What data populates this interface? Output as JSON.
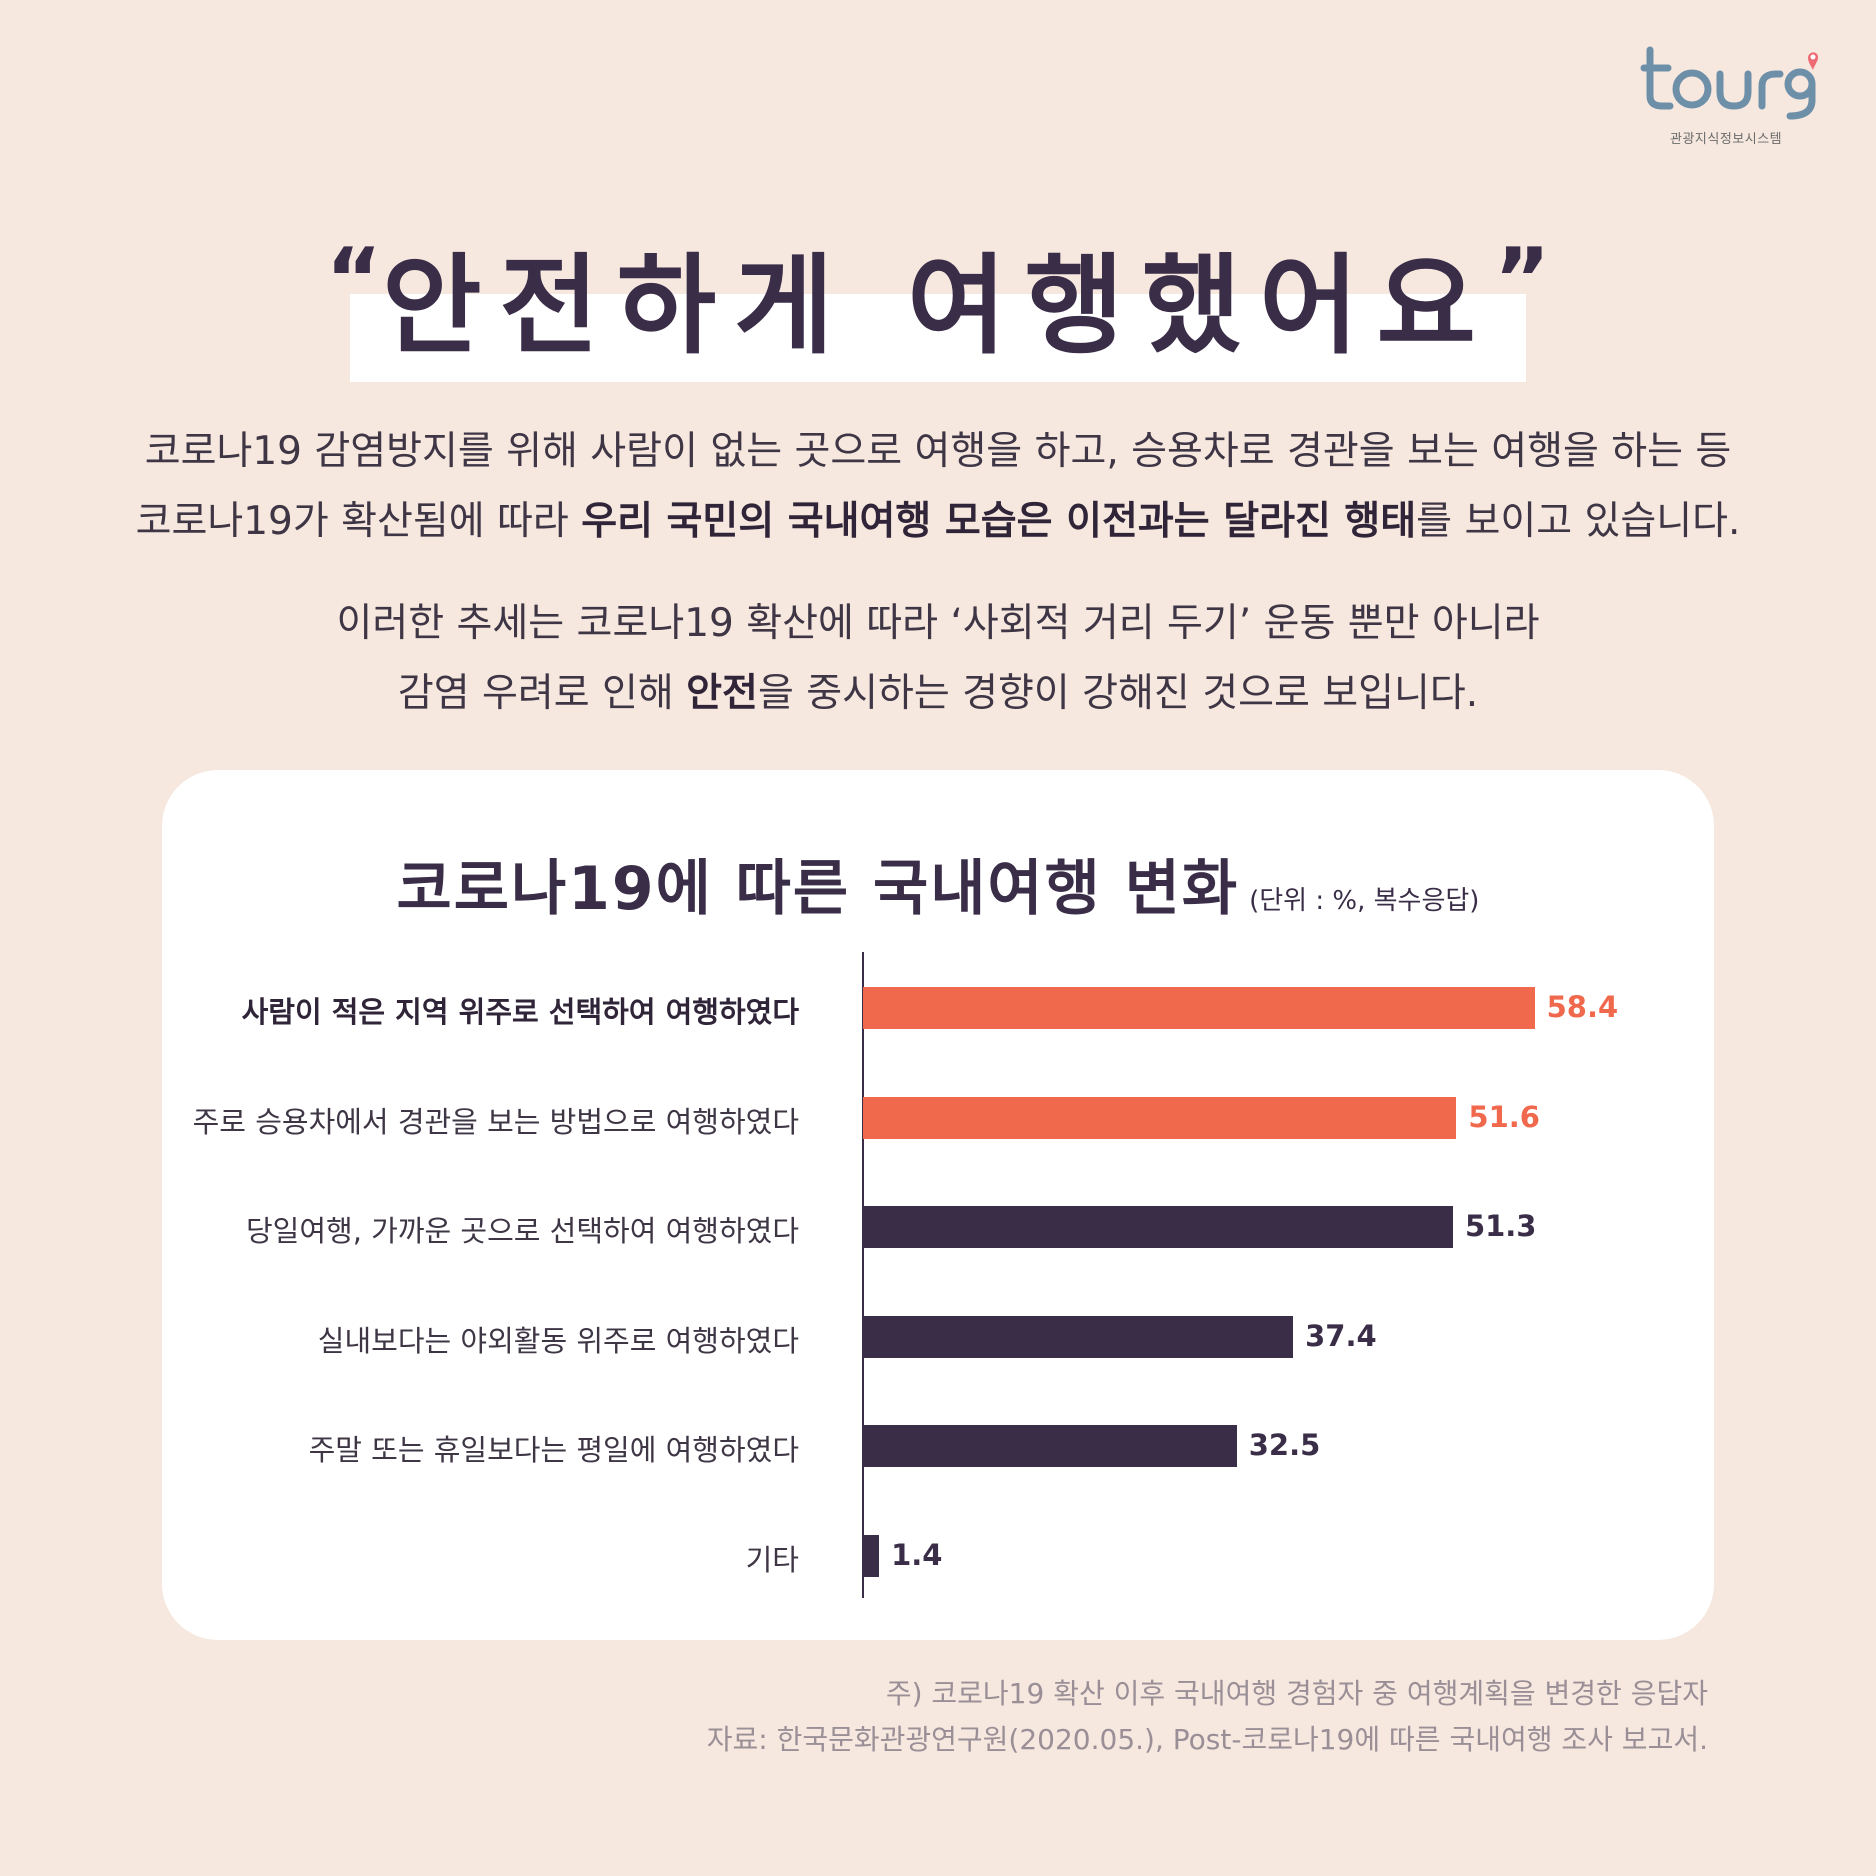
{
  "logo": {
    "wordmark": "tour9",
    "subtitle": "관광지식정보시스템",
    "colors": {
      "text": "#6e8fa8",
      "pin": "#ee6b73"
    }
  },
  "headline": {
    "open_quote": "“",
    "text": "안전하게 여행했어요",
    "close_quote": "”"
  },
  "intro": {
    "line1": "코로나19 감염방지를 위해 사람이 없는 곳으로 여행을 하고, 승용차로 경관을 보는 여행을 하는 등",
    "line2_pre": "코로나19가 확산됨에 따라 ",
    "line2_bold": "우리 국민의 국내여행 모습은 이전과는 달라진 행태",
    "line2_post": "를 보이고 있습니다.",
    "line3": "이러한 추세는 코로나19 확산에 따라 ‘사회적 거리 두기’ 운동 뿐만 아니라",
    "line4_pre": "감염 우려로 인해 ",
    "line4_bold": "안전",
    "line4_post": "을 중시하는 경향이 강해진 것으로 보입니다."
  },
  "chart_data": {
    "type": "bar",
    "orientation": "horizontal",
    "title": "코로나19에 따른 국내여행 변화",
    "unit_note": "(단위 : %, 복수응답)",
    "categories": [
      "사람이 적은 지역 위주로 선택하여 여행하였다",
      "주로 승용차에서 경관을 보는 방법으로 여행하였다",
      "당일여행, 가까운 곳으로 선택하여 여행하였다",
      "실내보다는 야외활동 위주로 여행하였다",
      "주말 또는 휴일보다는 평일에 여행하였다",
      "기타"
    ],
    "values": [
      58.4,
      51.6,
      51.3,
      37.4,
      32.5,
      1.4
    ],
    "value_labels": [
      "58.4",
      "51.6",
      "51.3",
      "37.4",
      "32.5",
      "1.4"
    ],
    "bold_categories": [
      0
    ],
    "bar_colors": [
      "#f0694d",
      "#f0694d",
      "#3a2d47",
      "#3a2d47",
      "#3a2d47",
      "#3a2d47"
    ],
    "xlim": [
      0,
      60
    ],
    "grid": false,
    "legend": "none"
  },
  "footnotes": {
    "note": "주) 코로나19 확산 이후 국내여행 경험자 중 여행계획을 변경한 응답자",
    "source": "자료: 한국문화관광연구원(2020.05.), Post-코로나19에 따른 국내여행 조사 보고서."
  }
}
